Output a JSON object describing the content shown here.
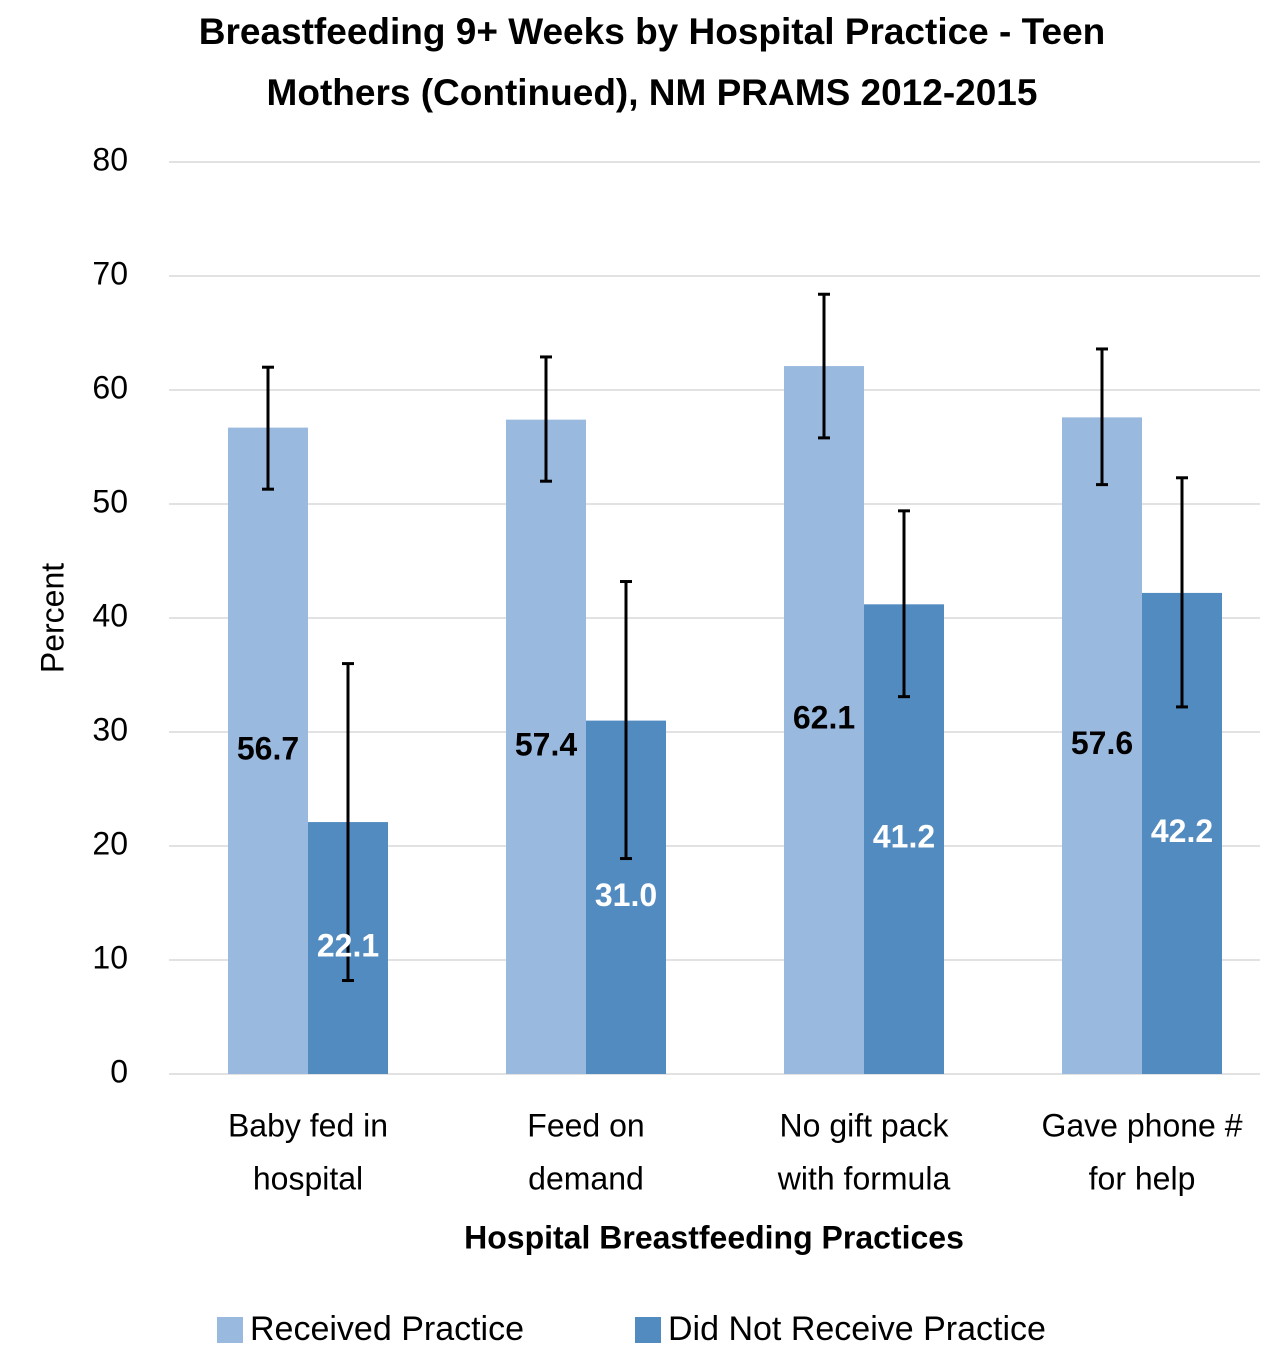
{
  "chart_data": {
    "type": "bar",
    "title": [
      "Breastfeeding 9+ Weeks by Hospital Practice  - Teen",
      "Mothers (Continued), NM PRAMS 2012-2015"
    ],
    "x_label": "Hospital Breastfeeding Practices",
    "y_label": "Percent",
    "categories": [
      [
        "Baby fed in",
        "hospital"
      ],
      [
        "Feed on",
        "demand"
      ],
      [
        "No gift pack",
        "with  formula"
      ],
      [
        "Gave phone #",
        "for help"
      ]
    ],
    "series": [
      {
        "name": "Received Practice",
        "color": "#9ab9df",
        "label_color": "#000000",
        "values": [
          56.7,
          57.4,
          62.1,
          57.6
        ],
        "value_labels": [
          "56.7",
          "57.4",
          "62.1",
          "57.6"
        ],
        "ci_lower": [
          51.3,
          52.0,
          55.8,
          51.7
        ],
        "ci_upper": [
          62.0,
          62.9,
          68.4,
          63.6
        ]
      },
      {
        "name": "Did Not Receive Practice",
        "color": "#528bc0",
        "label_color": "#ffffff",
        "values": [
          22.1,
          31.0,
          41.2,
          42.2
        ],
        "value_labels": [
          "22.1",
          "31.0",
          "41.2",
          "42.2"
        ],
        "ci_lower": [
          8.2,
          18.9,
          33.1,
          32.2
        ],
        "ci_upper": [
          36.0,
          43.2,
          49.4,
          52.3
        ]
      }
    ],
    "ylim": [
      0,
      80
    ],
    "yticks": [
      0,
      10,
      20,
      30,
      40,
      50,
      60,
      70,
      80
    ],
    "grid": true,
    "legend": "bottom"
  }
}
